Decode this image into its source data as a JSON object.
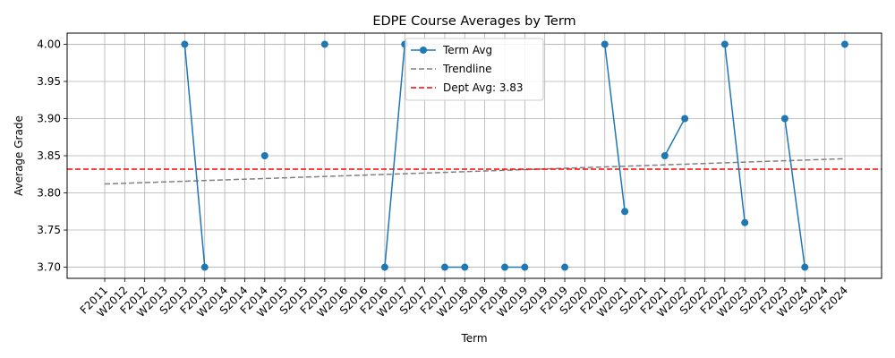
{
  "chart_data": {
    "type": "line",
    "title": "EDPE Course Averages by Term",
    "xlabel": "Term",
    "ylabel": "Average Grade",
    "ylim": [
      3.685,
      4.015
    ],
    "yticks": [
      3.7,
      3.75,
      3.8,
      3.85,
      3.9,
      3.95,
      4.0
    ],
    "ytick_labels": [
      "3.70",
      "3.75",
      "3.80",
      "3.85",
      "3.90",
      "3.95",
      "4.00"
    ],
    "grid": true,
    "legend_position": "top-center",
    "categories": [
      "F2011",
      "W2012",
      "F2012",
      "W2013",
      "S2013",
      "F2013",
      "W2014",
      "S2014",
      "F2014",
      "W2015",
      "S2015",
      "F2015",
      "W2016",
      "S2016",
      "F2016",
      "W2017",
      "S2017",
      "F2017",
      "W2018",
      "S2018",
      "F2018",
      "W2019",
      "S2019",
      "F2019",
      "S2020",
      "F2020",
      "W2021",
      "S2021",
      "F2021",
      "W2022",
      "S2022",
      "F2022",
      "W2023",
      "S2023",
      "F2023",
      "W2024",
      "S2024",
      "F2024"
    ],
    "series": [
      {
        "name": "Term Avg",
        "color": "#1f77b4",
        "values": [
          null,
          null,
          null,
          null,
          4.0,
          3.7,
          null,
          null,
          3.85,
          null,
          null,
          4.0,
          null,
          null,
          3.7,
          4.0,
          null,
          3.7,
          3.7,
          null,
          3.7,
          3.7,
          null,
          3.7,
          null,
          4.0,
          3.775,
          null,
          3.85,
          3.9,
          null,
          4.0,
          3.76,
          null,
          3.9,
          3.7,
          null,
          4.0
        ]
      },
      {
        "name": "Trendline",
        "color": "#808080",
        "start": 3.812,
        "end": 3.846
      },
      {
        "name": "Dept Avg: 3.83",
        "color": "#ff0000",
        "value": 3.832
      }
    ]
  }
}
